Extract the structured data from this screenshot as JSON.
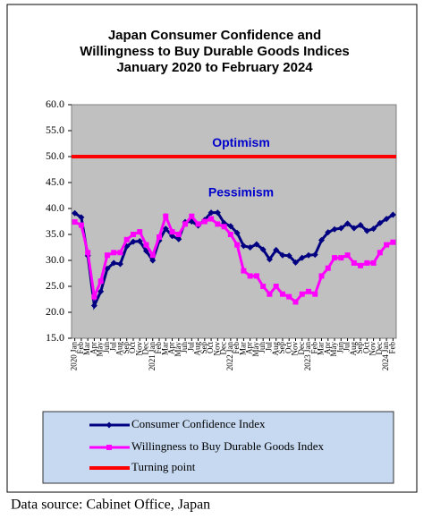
{
  "chart_data": {
    "type": "line",
    "title": [
      "Japan Consumer Confidence and",
      "Willingness to Buy Durable Goods Indices",
      "January 2020 to February 2024"
    ],
    "categories": [
      "2020 Jan",
      "Feb",
      "Mar",
      "Apr",
      "May",
      "Jun",
      "Jul",
      "Aug",
      "Sep",
      "Oct",
      "Nov",
      "Dec",
      "2021 Jan",
      "Feb",
      "Mar",
      "Apr",
      "May",
      "Jun",
      "Jul",
      "Aug",
      "Sep",
      "Oct",
      "Nov",
      "Dec",
      "2022 Jan",
      "Feb",
      "Mar",
      "Apr",
      "May",
      "Jun",
      "Jul",
      "Aug",
      "Sep",
      "Oct",
      "Nov",
      "Dec",
      "2023 Jan",
      "Feb",
      "Mar",
      "Apr",
      "May",
      "Jun",
      "Jul",
      "Aug",
      "Sep",
      "Oct",
      "Nov",
      "Dec",
      "2024 Jan",
      "Feb"
    ],
    "series": [
      {
        "name": "Consumer Confidence Index",
        "color": "#000080",
        "marker": "diamond",
        "values": [
          39.1,
          38.3,
          30.9,
          21.3,
          24.0,
          28.4,
          29.5,
          29.3,
          32.7,
          33.6,
          33.7,
          31.8,
          30.0,
          33.8,
          36.1,
          34.7,
          34.1,
          37.4,
          37.5,
          36.7,
          37.8,
          39.2,
          39.2,
          37.2,
          36.6,
          35.3,
          32.8,
          32.5,
          33.1,
          32.1,
          30.2,
          32.0,
          31.0,
          30.9,
          29.6,
          30.5,
          31.0,
          31.1,
          33.9,
          35.4,
          36.0,
          36.2,
          37.1,
          36.2,
          36.8,
          35.7,
          36.1,
          37.2,
          38.0,
          38.8
        ]
      },
      {
        "name": "Willingness to Buy Durable Goods Index",
        "color": "#ff00ff",
        "marker": "square",
        "values": [
          37.4,
          36.8,
          31.5,
          23.0,
          26.0,
          31.0,
          31.5,
          31.5,
          34.0,
          35.0,
          35.5,
          33.0,
          31.0,
          34.5,
          38.5,
          35.5,
          35.0,
          37.0,
          38.5,
          37.0,
          37.5,
          38.0,
          37.0,
          36.5,
          35.0,
          33.0,
          28.0,
          27.0,
          27.0,
          25.0,
          23.5,
          25.0,
          23.5,
          23.0,
          22.0,
          23.5,
          24.0,
          23.5,
          27.0,
          28.5,
          30.5,
          30.5,
          31.0,
          29.5,
          29.0,
          29.5,
          29.5,
          31.5,
          33.0,
          33.5
        ]
      }
    ],
    "reference": {
      "name": "Turning point",
      "value": 50,
      "color": "#ff0000"
    },
    "annotations": [
      {
        "text": "Optimism",
        "y": 52.5
      },
      {
        "text": "Pessimism",
        "y": 43
      }
    ],
    "ylim": [
      15,
      60
    ],
    "yticks": [
      {
        "value": 15,
        "label": "15.0"
      },
      {
        "value": 20,
        "label": "20.0"
      },
      {
        "value": 25,
        "label": "25.0"
      },
      {
        "value": 30,
        "label": "30.0"
      },
      {
        "value": 35,
        "label": "35.0"
      },
      {
        "value": 40,
        "label": "40.0"
      },
      {
        "value": 45,
        "label": "45.0"
      },
      {
        "value": 50,
        "label": "50.0"
      },
      {
        "value": 55,
        "label": "55.0"
      },
      {
        "value": 60,
        "label": "60.0"
      }
    ],
    "annotation_color": "#0000cc",
    "source": "Data source: Cabinet Office, Japan"
  }
}
